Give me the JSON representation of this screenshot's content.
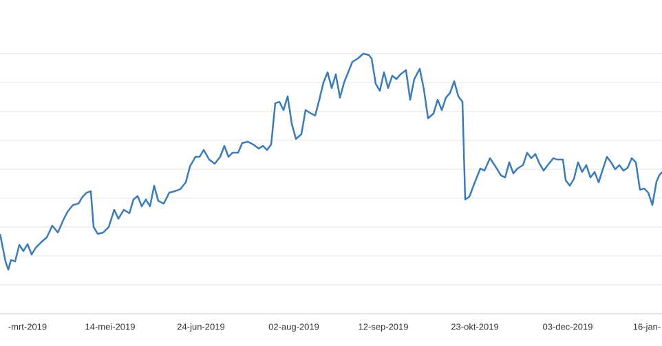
{
  "chart_data": {
    "type": "line",
    "x": [
      0,
      8,
      12,
      16,
      22,
      28,
      34,
      40,
      46,
      52,
      60,
      68,
      76,
      84,
      92,
      98,
      106,
      114,
      120,
      126,
      132,
      136,
      142,
      150,
      158,
      166,
      172,
      180,
      188,
      194,
      200,
      206,
      212,
      218,
      224,
      230,
      238,
      246,
      254,
      262,
      270,
      276,
      284,
      290,
      296,
      304,
      312,
      320,
      326,
      332,
      338,
      346,
      352,
      360,
      368,
      376,
      382,
      388,
      394,
      400,
      406,
      412,
      418,
      424,
      430,
      438,
      444,
      452,
      458,
      464,
      470,
      476,
      482,
      488,
      494,
      500,
      506,
      512,
      520,
      528,
      536,
      540,
      546,
      552,
      558,
      564,
      570,
      576,
      582,
      590,
      596,
      602,
      610,
      616,
      622,
      630,
      636,
      642,
      648,
      654,
      660,
      666,
      672,
      676,
      682,
      690,
      698,
      704,
      712,
      720,
      728,
      734,
      740,
      746,
      752,
      760,
      766,
      772,
      778,
      784,
      790,
      796,
      804,
      810,
      818,
      822,
      828,
      834,
      840,
      846,
      852,
      858,
      864,
      870,
      876,
      882,
      888,
      894,
      900,
      906,
      912,
      918,
      924,
      930,
      936,
      942,
      948,
      954,
      958,
      962
    ],
    "series": [
      {
        "color": "#3b7bb6",
        "values": [
          116,
          76,
          64,
          78,
          76,
          100,
          91,
          101,
          86,
          96,
          104,
          111,
          128,
          118,
          136,
          148,
          158,
          160,
          170,
          176,
          178,
          126,
          116,
          118,
          126,
          151,
          138,
          151,
          146,
          166,
          171,
          156,
          166,
          156,
          186,
          164,
          160,
          176,
          178,
          181,
          191,
          214,
          228,
          228,
          238,
          224,
          218,
          228,
          244,
          228,
          234,
          234,
          248,
          250,
          246,
          240,
          244,
          238,
          246,
          306,
          308,
          296,
          316,
          276,
          254,
          261,
          296,
          291,
          288,
          311,
          336,
          351,
          328,
          348,
          314,
          336,
          351,
          366,
          371,
          378,
          376,
          371,
          334,
          324,
          351,
          328,
          346,
          341,
          348,
          354,
          311,
          341,
          356,
          326,
          284,
          291,
          311,
          296,
          314,
          321,
          338,
          316,
          308,
          166,
          170,
          191,
          211,
          208,
          226,
          214,
          201,
          198,
          220,
          204,
          211,
          216,
          234,
          226,
          232,
          218,
          208,
          216,
          226,
          224,
          224,
          194,
          186,
          196,
          220,
          206,
          216,
          198,
          206,
          191,
          210,
          228,
          220,
          210,
          216,
          208,
          212,
          226,
          220,
          180,
          182,
          176,
          158,
          192,
          201,
          206
        ]
      }
    ],
    "xlim": [
      0,
      962
    ],
    "xticks": [
      {
        "value": 40,
        "label": "-mrt-2019"
      },
      {
        "value": 160,
        "label": "14-mei-2019"
      },
      {
        "value": 292,
        "label": "24-jun-2019"
      },
      {
        "value": 427,
        "label": "02-aug-2019"
      },
      {
        "value": 557,
        "label": "12-sep-2019"
      },
      {
        "value": 690,
        "label": "23-okt-2019"
      },
      {
        "value": 825,
        "label": "03-dec-2019"
      },
      {
        "value": 940,
        "label": "16-jan-"
      }
    ],
    "ylim": [
      0,
      420
    ],
    "yticks": [
      42,
      84,
      126,
      168,
      210,
      252,
      294,
      336,
      378
    ],
    "show_ytick_labels": false,
    "grid": true
  }
}
